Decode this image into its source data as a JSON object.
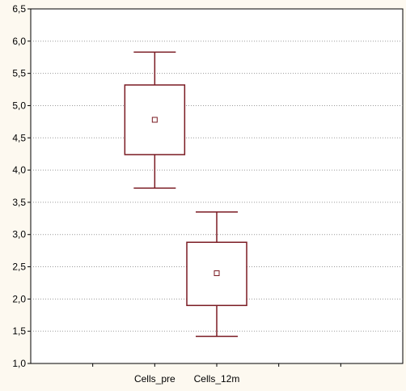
{
  "chart_data": {
    "type": "box",
    "categories": [
      "Cells_pre",
      "Cells_12m"
    ],
    "boxes": [
      {
        "name": "Cells_pre",
        "whisker_low": 3.72,
        "q1": 4.24,
        "mean": 4.78,
        "q3": 5.32,
        "whisker_high": 5.83
      },
      {
        "name": "Cells_12m",
        "whisker_low": 1.42,
        "q1": 1.9,
        "mean": 2.4,
        "q3": 2.88,
        "whisker_high": 3.35
      }
    ],
    "ylim": [
      1.0,
      6.5
    ],
    "y_ticks": [
      1.0,
      1.5,
      2.0,
      2.5,
      3.0,
      3.5,
      4.0,
      4.5,
      5.0,
      5.5,
      6.0,
      6.5
    ],
    "y_tick_labels": [
      "1,0",
      "1,5",
      "2,0",
      "2,5",
      "3,0",
      "3,5",
      "4,0",
      "4,5",
      "5,0",
      "5,5",
      "6,0",
      "6,5"
    ],
    "x_minor_tick_count": 5,
    "grid": "horizontal-dotted",
    "title": "",
    "xlabel": "",
    "ylabel": "",
    "colors": {
      "box_stroke": "#7a1a22",
      "mean_marker": "#7a1a22",
      "background": "#fdf9f0",
      "plot_background": "#ffffff"
    }
  }
}
